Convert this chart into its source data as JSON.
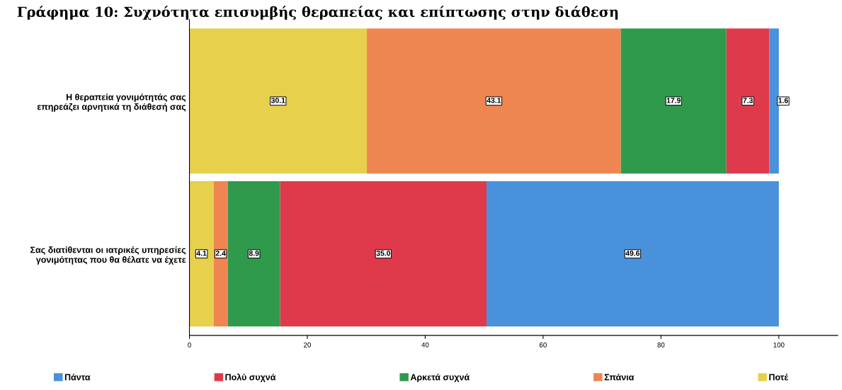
{
  "chart_data": {
    "type": "bar",
    "orientation": "horizontal",
    "stacked": true,
    "title": "Γράφημα 10: Συχνότητα επισυμβής θεραπείας και επίπτωσης στην διάθεση",
    "categories": [
      "Η θεραπεία γονιμότητάς σας\nεπηρεάζει αρνητικά τη διάθεσή σας",
      "Σας διατίθενται οι ιατρικές υπηρεσίες\nγονιμότητας που θα θέλατε να έχετε"
    ],
    "series": [
      {
        "name": "Ποτέ",
        "color": "#e6d04c",
        "values": [
          30.1,
          4.1
        ],
        "value_labels": [
          "30.1",
          "4.1"
        ]
      },
      {
        "name": "Σπάνια",
        "color": "#ef8550",
        "values": [
          43.1,
          2.4
        ],
        "value_labels": [
          "43.1",
          "2.4"
        ]
      },
      {
        "name": "Αρκετά συχνά",
        "color": "#2f9a4c",
        "values": [
          17.9,
          8.9
        ],
        "value_labels": [
          "17.9",
          "8.9"
        ]
      },
      {
        "name": "Πολύ συχνά",
        "color": "#df3a4b",
        "values": [
          7.3,
          35.0
        ],
        "value_labels": [
          "7.3",
          "35.0"
        ]
      },
      {
        "name": "Πάντα",
        "color": "#4a91dc",
        "values": [
          1.6,
          49.6
        ],
        "value_labels": [
          "1.6",
          "49.6"
        ]
      }
    ],
    "xlim": [
      0,
      110
    ],
    "xticks": [
      0,
      20,
      40,
      60,
      80,
      100
    ],
    "legend": "bottom",
    "grid": false
  }
}
